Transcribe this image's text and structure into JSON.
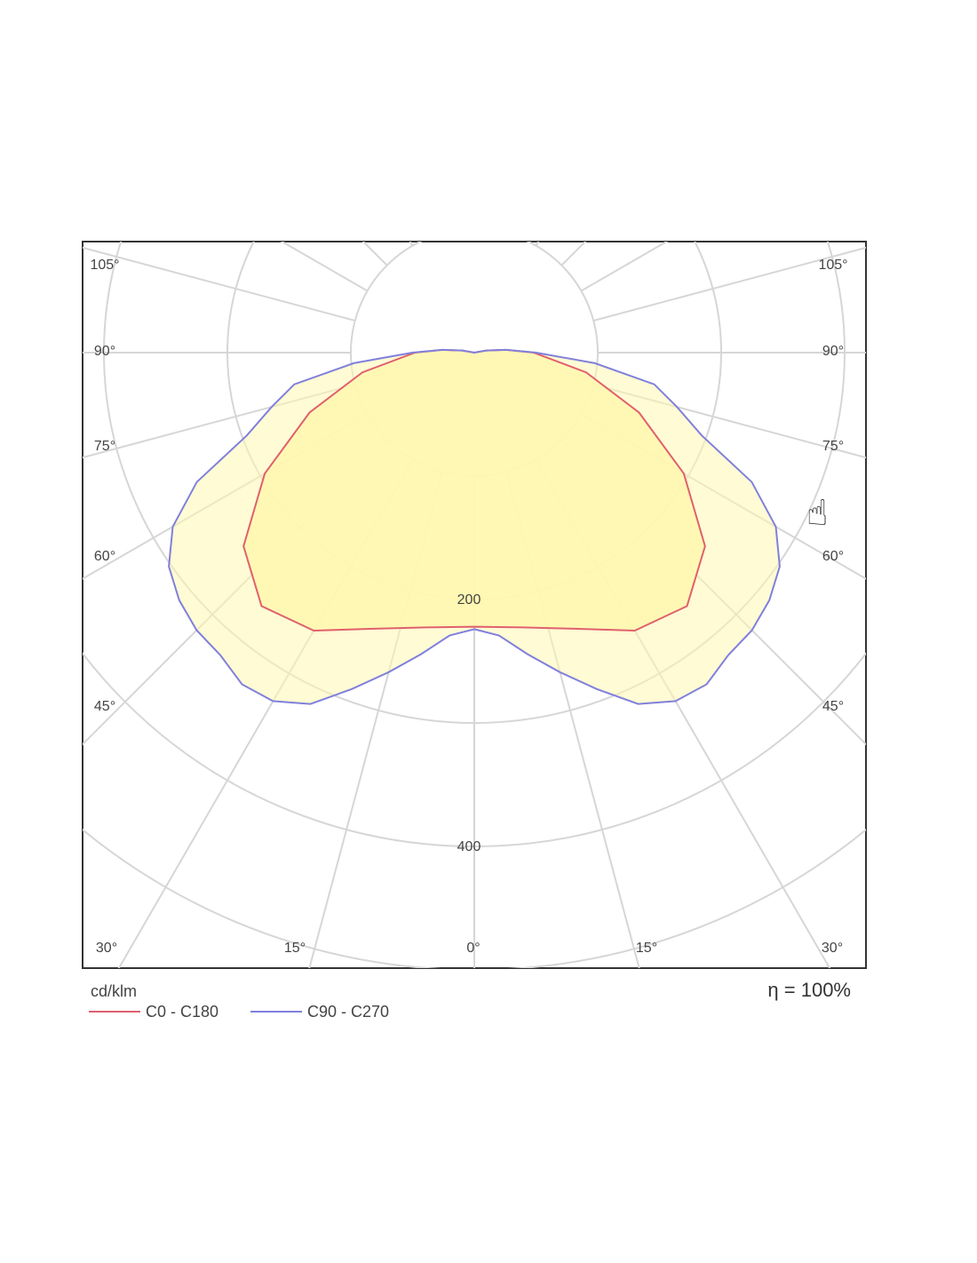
{
  "chart_data": {
    "type": "polar",
    "unit_label": "cd/klm",
    "efficiency_label": "η = 100%",
    "radial_ticks": [
      {
        "value": 200,
        "label": "200"
      },
      {
        "value": 400,
        "label": "400"
      }
    ],
    "angle_labels_left": [
      "105°",
      "90°",
      "75°",
      "60°",
      "45°",
      "30°",
      "15°",
      "0°"
    ],
    "angle_labels_right": [
      "105°",
      "90°",
      "75°",
      "60°",
      "45°",
      "30°",
      "15°"
    ],
    "angle_tick_values": [
      0,
      15,
      30,
      45,
      60,
      75,
      90,
      105
    ],
    "series": [
      {
        "name": "C0 - C180",
        "color": "#e0606e",
        "points": [
          [
            0,
            222
          ],
          [
            10,
            226
          ],
          [
            20,
            238
          ],
          [
            30,
            260
          ],
          [
            40,
            268
          ],
          [
            50,
            244
          ],
          [
            60,
            196
          ],
          [
            70,
            142
          ],
          [
            80,
            92
          ],
          [
            90,
            48
          ],
          [
            95,
            26
          ],
          [
            100,
            10
          ],
          [
            105,
            0
          ]
        ]
      },
      {
        "name": "C90 - C270",
        "color": "#8080dc",
        "points": [
          [
            0,
            224
          ],
          [
            5,
            230
          ],
          [
            10,
            248
          ],
          [
            15,
            268
          ],
          [
            20,
            290
          ],
          [
            25,
            314
          ],
          [
            30,
            326
          ],
          [
            35,
            328
          ],
          [
            40,
            320
          ],
          [
            45,
            318
          ],
          [
            50,
            312
          ],
          [
            55,
            302
          ],
          [
            60,
            282
          ],
          [
            65,
            248
          ],
          [
            70,
            196
          ],
          [
            75,
            170
          ],
          [
            80,
            148
          ],
          [
            85,
            98
          ],
          [
            90,
            50
          ],
          [
            95,
            26
          ],
          [
            100,
            10
          ],
          [
            105,
            0
          ]
        ]
      }
    ],
    "fill_color": "#fff7b0",
    "grid": true,
    "legend_position": "bottom-left"
  }
}
